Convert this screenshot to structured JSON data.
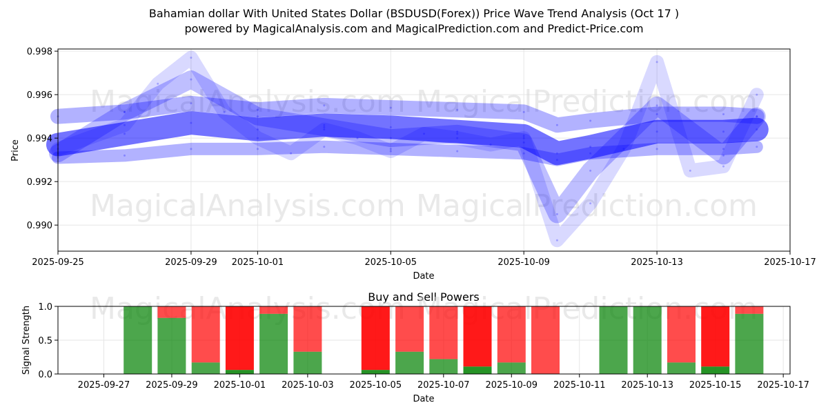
{
  "header": {
    "title_line1": "Bahamian dollar With United States Dollar (BSDUSD(Forex)) Price Wave Trend Analysis (Oct 17 )",
    "title_line2": "powered by MagicalAnalysis.com and MagicalPrediction.com and Predict-Price.com"
  },
  "watermarks": [
    "MagicalAnalysis.com",
    "MagicalPrediction.com"
  ],
  "colors": {
    "wave": "#0000ff",
    "buy": "#008000",
    "sell": "#ff0000",
    "grid": "#e6e6e6"
  },
  "chart_data": [
    {
      "type": "area",
      "title": "",
      "xlabel": "Date",
      "ylabel": "Price",
      "xlim": [
        "2025-09-25",
        "2025-10-17"
      ],
      "ylim": [
        0.9888,
        0.9981
      ],
      "x_ticks": [
        "2025-09-25",
        "2025-09-29",
        "2025-10-01",
        "2025-10-05",
        "2025-10-09",
        "2025-10-13",
        "2025-10-17"
      ],
      "y_ticks": [
        "0.990",
        "0.992",
        "0.994",
        "0.996",
        "0.998"
      ],
      "grid": true,
      "series": [
        {
          "x": [
            "2025-09-25",
            "2025-09-27",
            "2025-09-29",
            "2025-10-01",
            "2025-10-03",
            "2025-10-05",
            "2025-10-07",
            "2025-10-09",
            "2025-10-10",
            "2025-10-11",
            "2025-10-13",
            "2025-10-15",
            "2025-10-16"
          ],
          "values": [
            0.9937,
            0.9942,
            0.9947,
            0.9944,
            0.9946,
            0.9945,
            0.9943,
            0.9941,
            0.9933,
            0.9936,
            0.9943,
            0.9943,
            0.9944
          ]
        },
        {
          "x": [
            "2025-09-25",
            "2025-09-27",
            "2025-09-29",
            "2025-10-01",
            "2025-10-03",
            "2025-10-05",
            "2025-10-07",
            "2025-10-09",
            "2025-10-10",
            "2025-10-11",
            "2025-10-13",
            "2025-10-15",
            "2025-10-16"
          ],
          "values": [
            0.995,
            0.9952,
            0.9956,
            0.9953,
            0.9955,
            0.9954,
            0.9953,
            0.9952,
            0.9946,
            0.9948,
            0.9951,
            0.9951,
            0.995
          ]
        },
        {
          "x": [
            "2025-09-25",
            "2025-09-27",
            "2025-09-29",
            "2025-10-01",
            "2025-10-03",
            "2025-10-05",
            "2025-10-07",
            "2025-10-09",
            "2025-10-10",
            "2025-10-11",
            "2025-10-13",
            "2025-10-15",
            "2025-10-16"
          ],
          "values": [
            0.9931,
            0.9932,
            0.9935,
            0.9935,
            0.9936,
            0.9935,
            0.9934,
            0.9933,
            0.993,
            0.9933,
            0.9935,
            0.9935,
            0.9936
          ]
        },
        {
          "x": [
            "2025-09-25",
            "2025-09-27",
            "2025-09-28",
            "2025-09-29",
            "2025-09-30",
            "2025-10-01",
            "2025-10-02",
            "2025-10-03",
            "2025-10-04",
            "2025-10-05",
            "2025-10-06",
            "2025-10-07",
            "2025-10-08",
            "2025-10-09",
            "2025-10-10",
            "2025-10-11",
            "2025-10-12",
            "2025-10-13",
            "2025-10-14",
            "2025-10-15",
            "2025-10-16"
          ],
          "values": [
            0.9935,
            0.9946,
            0.9965,
            0.9977,
            0.9952,
            0.994,
            0.9933,
            0.9944,
            0.994,
            0.9934,
            0.9942,
            0.994,
            0.9937,
            0.994,
            0.9893,
            0.991,
            0.9935,
            0.9975,
            0.9925,
            0.9927,
            0.996
          ]
        },
        {
          "x": [
            "2025-09-25",
            "2025-09-27",
            "2025-09-29",
            "2025-10-01",
            "2025-10-03",
            "2025-10-05",
            "2025-10-07",
            "2025-10-09",
            "2025-10-10",
            "2025-10-11",
            "2025-10-13",
            "2025-10-15",
            "2025-10-16"
          ],
          "values": [
            0.9933,
            0.9952,
            0.9967,
            0.995,
            0.9945,
            0.994,
            0.9942,
            0.9938,
            0.9905,
            0.9925,
            0.9955,
            0.9932,
            0.995
          ]
        }
      ]
    },
    {
      "type": "bar",
      "title": "Buy and Sell Powers",
      "xlabel": "Date",
      "ylabel": "Signal Strength",
      "xlim": [
        "2025-09-26",
        "2025-10-17"
      ],
      "ylim": [
        0,
        1.0
      ],
      "x_ticks": [
        "2025-09-27",
        "2025-09-29",
        "2025-10-01",
        "2025-10-03",
        "2025-10-05",
        "2025-10-07",
        "2025-10-09",
        "2025-10-11",
        "2025-10-13",
        "2025-10-15",
        "2025-10-17"
      ],
      "y_ticks": [
        "0.0",
        "0.5",
        "1.0"
      ],
      "grid": true,
      "categories": [
        "2025-09-28",
        "2025-09-29",
        "2025-09-30",
        "2025-10-01",
        "2025-10-02",
        "2025-10-03",
        "2025-10-05",
        "2025-10-06",
        "2025-10-07",
        "2025-10-08",
        "2025-10-09",
        "2025-10-10",
        "2025-10-12",
        "2025-10-13",
        "2025-10-14",
        "2025-10-15",
        "2025-10-16"
      ],
      "series": [
        {
          "values": [
            1.0,
            0.83,
            0.17,
            0.06,
            0.89,
            0.33,
            0.06,
            0.33,
            0.22,
            0.11,
            0.17,
            0.0,
            1.0,
            1.0,
            0.17,
            0.11,
            0.89
          ]
        },
        {
          "values": [
            0.0,
            0.17,
            0.83,
            0.94,
            0.11,
            0.67,
            0.94,
            0.67,
            0.78,
            0.89,
            0.83,
            1.0,
            0.0,
            0.0,
            0.83,
            0.89,
            0.11
          ]
        }
      ]
    }
  ]
}
